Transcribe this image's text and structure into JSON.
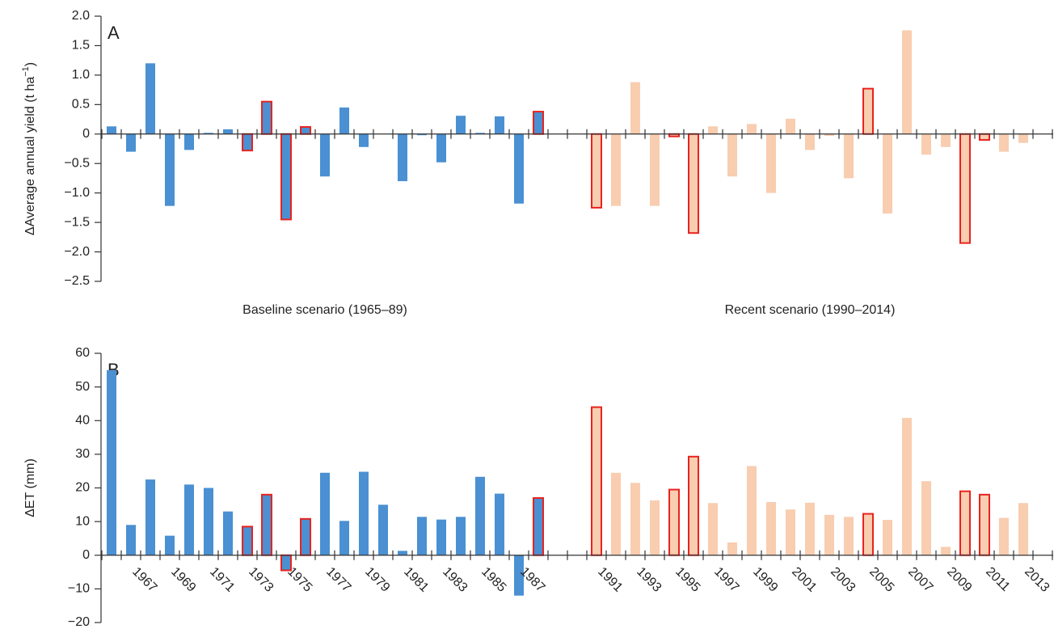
{
  "chart_data": [
    {
      "type": "bar",
      "panel_label": "A",
      "ylabel": [
        "ΔAverage annual yield (t ha",
        "−1",
        ")"
      ],
      "ylim": [
        -2.5,
        2.0
      ],
      "yticks": [
        {
          "value": -2.5,
          "label": "−2.5"
        },
        {
          "value": -2.0,
          "label": "−2.0"
        },
        {
          "value": -1.5,
          "label": "−1.5"
        },
        {
          "value": -1.0,
          "label": "−1.0"
        },
        {
          "value": -0.5,
          "label": "−0.5"
        },
        0,
        {
          "value": 0.5,
          "label": "0.5"
        },
        {
          "value": 1.0,
          "label": "1.0"
        },
        {
          "value": 1.5,
          "label": "1.5"
        },
        {
          "value": 2.0,
          "label": "2.0"
        }
      ],
      "edge_color": "#e8231f",
      "series": [
        {
          "name": "Baseline scenario (1965–89)",
          "color": "#4a90d2",
          "outlined": [
            7,
            8,
            9,
            10,
            22
          ],
          "values": [
            0.13,
            -0.3,
            1.2,
            -1.22,
            -0.27,
            0.02,
            0.08,
            -0.28,
            0.55,
            -1.45,
            0.12,
            -0.72,
            0.45,
            -0.22,
            0.0,
            -0.8,
            -0.02,
            -0.48,
            0.31,
            0.02,
            0.3,
            -1.18,
            0.38,
            null,
            null,
            null,
            null,
            null,
            null,
            null,
            null,
            null,
            null,
            null,
            null,
            null,
            null,
            null,
            null,
            null,
            null,
            null,
            null,
            null,
            null,
            null,
            null,
            null,
            null
          ]
        },
        {
          "name": "Recent scenario (1990–2014)",
          "color": "#f8cdb0",
          "outlined": [
            25,
            29,
            30,
            39,
            44,
            45
          ],
          "values": [
            null,
            null,
            null,
            null,
            null,
            null,
            null,
            null,
            null,
            null,
            null,
            null,
            null,
            null,
            null,
            null,
            null,
            null,
            null,
            null,
            null,
            null,
            null,
            null,
            null,
            -1.25,
            -1.22,
            0.88,
            -1.22,
            -0.04,
            -1.68,
            0.13,
            -0.72,
            0.17,
            -1.0,
            0.26,
            -0.27,
            -0.03,
            -0.75,
            0.77,
            -1.35,
            1.76,
            -0.35,
            -0.22,
            -1.85,
            -0.1,
            -0.3,
            -0.15,
            null
          ]
        }
      ]
    },
    {
      "type": "bar",
      "panel_label": "B",
      "ylabel": [
        "ΔET (mm)"
      ],
      "ylim": [
        -20,
        60
      ],
      "yticks": [
        {
          "value": -20,
          "label": "−20"
        },
        {
          "value": -10,
          "label": "−10"
        },
        0,
        10,
        20,
        30,
        40,
        50,
        60
      ],
      "edge_color": "#e8231f",
      "categories": [
        null,
        null,
        "1967",
        null,
        "1969",
        null,
        "1971",
        null,
        "1973",
        null,
        "1975",
        null,
        "1977",
        null,
        "1979",
        null,
        "1981",
        null,
        "1983",
        null,
        "1985",
        null,
        "1987",
        null,
        null,
        null,
        "1991",
        null,
        "1993",
        null,
        "1995",
        null,
        "1997",
        null,
        "1999",
        null,
        "2001",
        null,
        "2003",
        null,
        "2005",
        null,
        "2007",
        null,
        "2009",
        null,
        "2011",
        null,
        "2013"
      ],
      "series": [
        {
          "color": "#4a90d2",
          "outlined": [
            7,
            8,
            9,
            10,
            22
          ],
          "values": [
            55,
            9,
            22.5,
            5.8,
            21,
            20,
            13,
            8.5,
            18,
            -4.5,
            10.8,
            24.5,
            10.2,
            24.8,
            15,
            1.3,
            11.4,
            10.6,
            11.4,
            23.3,
            18.3,
            -12,
            17,
            null,
            null,
            null,
            null,
            null,
            null,
            null,
            null,
            null,
            null,
            null,
            null,
            null,
            null,
            null,
            null,
            null,
            null,
            null,
            null,
            null,
            null,
            null,
            null,
            null,
            null
          ]
        },
        {
          "color": "#f8cdb0",
          "outlined": [
            25,
            29,
            30,
            39,
            44,
            45
          ],
          "values": [
            null,
            null,
            null,
            null,
            null,
            null,
            null,
            null,
            null,
            null,
            null,
            null,
            null,
            null,
            null,
            null,
            null,
            null,
            null,
            null,
            null,
            null,
            null,
            null,
            null,
            44,
            24.5,
            21.5,
            16.3,
            19.5,
            29.3,
            15.5,
            3.8,
            26.5,
            15.8,
            13.6,
            15.6,
            12,
            11.4,
            12.3,
            10.5,
            40.8,
            22,
            2.5,
            19,
            18,
            11.1,
            15.5,
            null
          ]
        }
      ]
    }
  ]
}
